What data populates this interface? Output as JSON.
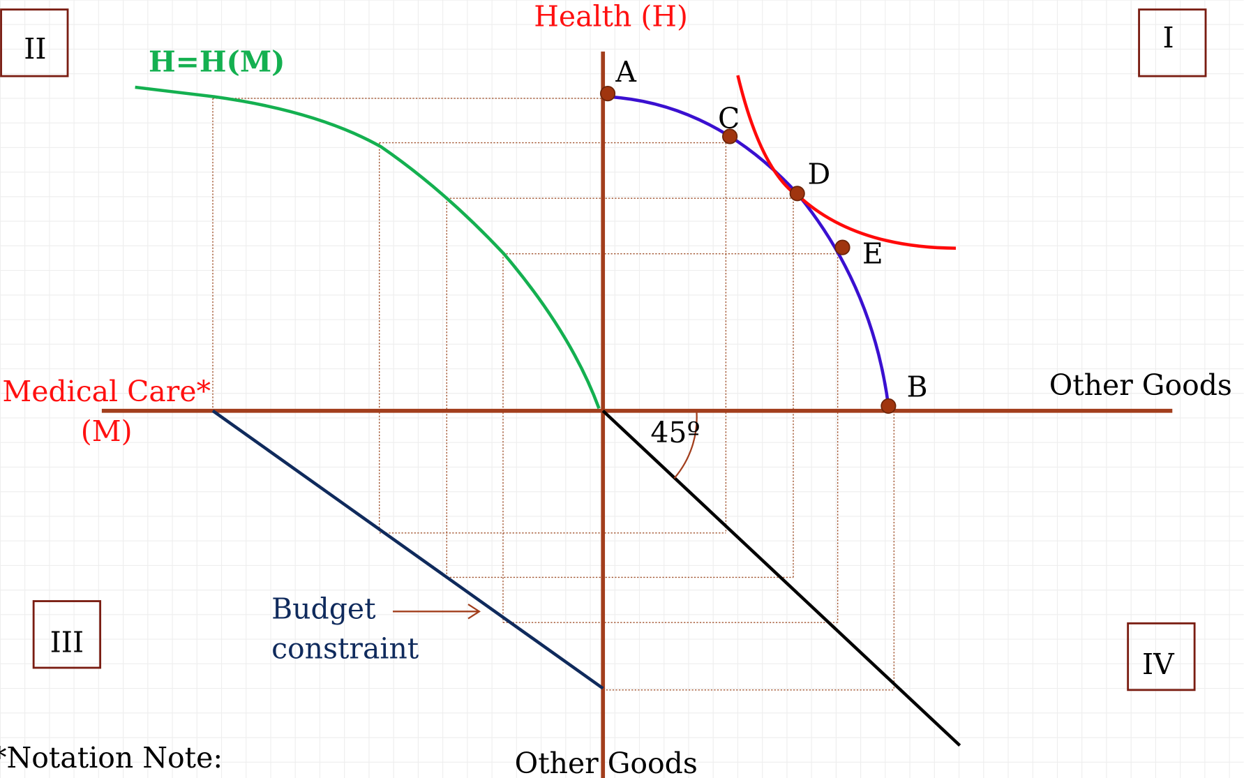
{
  "axes": {
    "vertical_top": "Health (H)",
    "vertical_bottom": "Other Goods",
    "horizontal_left": [
      "Medical Care*",
      "(M)"
    ],
    "horizontal_right": "Other Goods"
  },
  "curves": {
    "production": "H=H(M)",
    "budget": [
      "Budget",
      "constraint"
    ],
    "angle": "45º"
  },
  "points": [
    "A",
    "B",
    "C",
    "D",
    "E"
  ],
  "quadrants": [
    "I",
    "II",
    "III",
    "IV"
  ],
  "note": "*Notation Note:"
}
